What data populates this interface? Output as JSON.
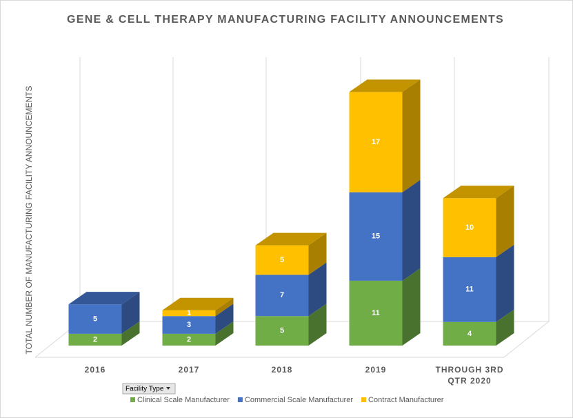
{
  "chart_data": {
    "type": "bar3d_stacked",
    "title": "GENE & CELL THERAPY MANUFACTURING FACILITY ANNOUNCEMENTS",
    "y_label": "TOTAL NUMBER OF MANUFACTURING FACILITY ANNOUNCEMENTS",
    "filter_label": "Facility Type",
    "categories": [
      "2016",
      "2017",
      "2018",
      "2019",
      "THROUGH 3RD QTR 2020"
    ],
    "series": [
      {
        "name": "Clinical Scale Manufacturer",
        "color": "#70ad47",
        "values": [
          2,
          2,
          5,
          11,
          4
        ]
      },
      {
        "name": "Commercial Scale Manufacturer",
        "color": "#4472c4",
        "values": [
          5,
          3,
          7,
          15,
          11
        ]
      },
      {
        "name": "Contract Manufacturer",
        "color": "#ffc000",
        "values": [
          null,
          1,
          5,
          17,
          10
        ]
      }
    ],
    "grid": true
  }
}
